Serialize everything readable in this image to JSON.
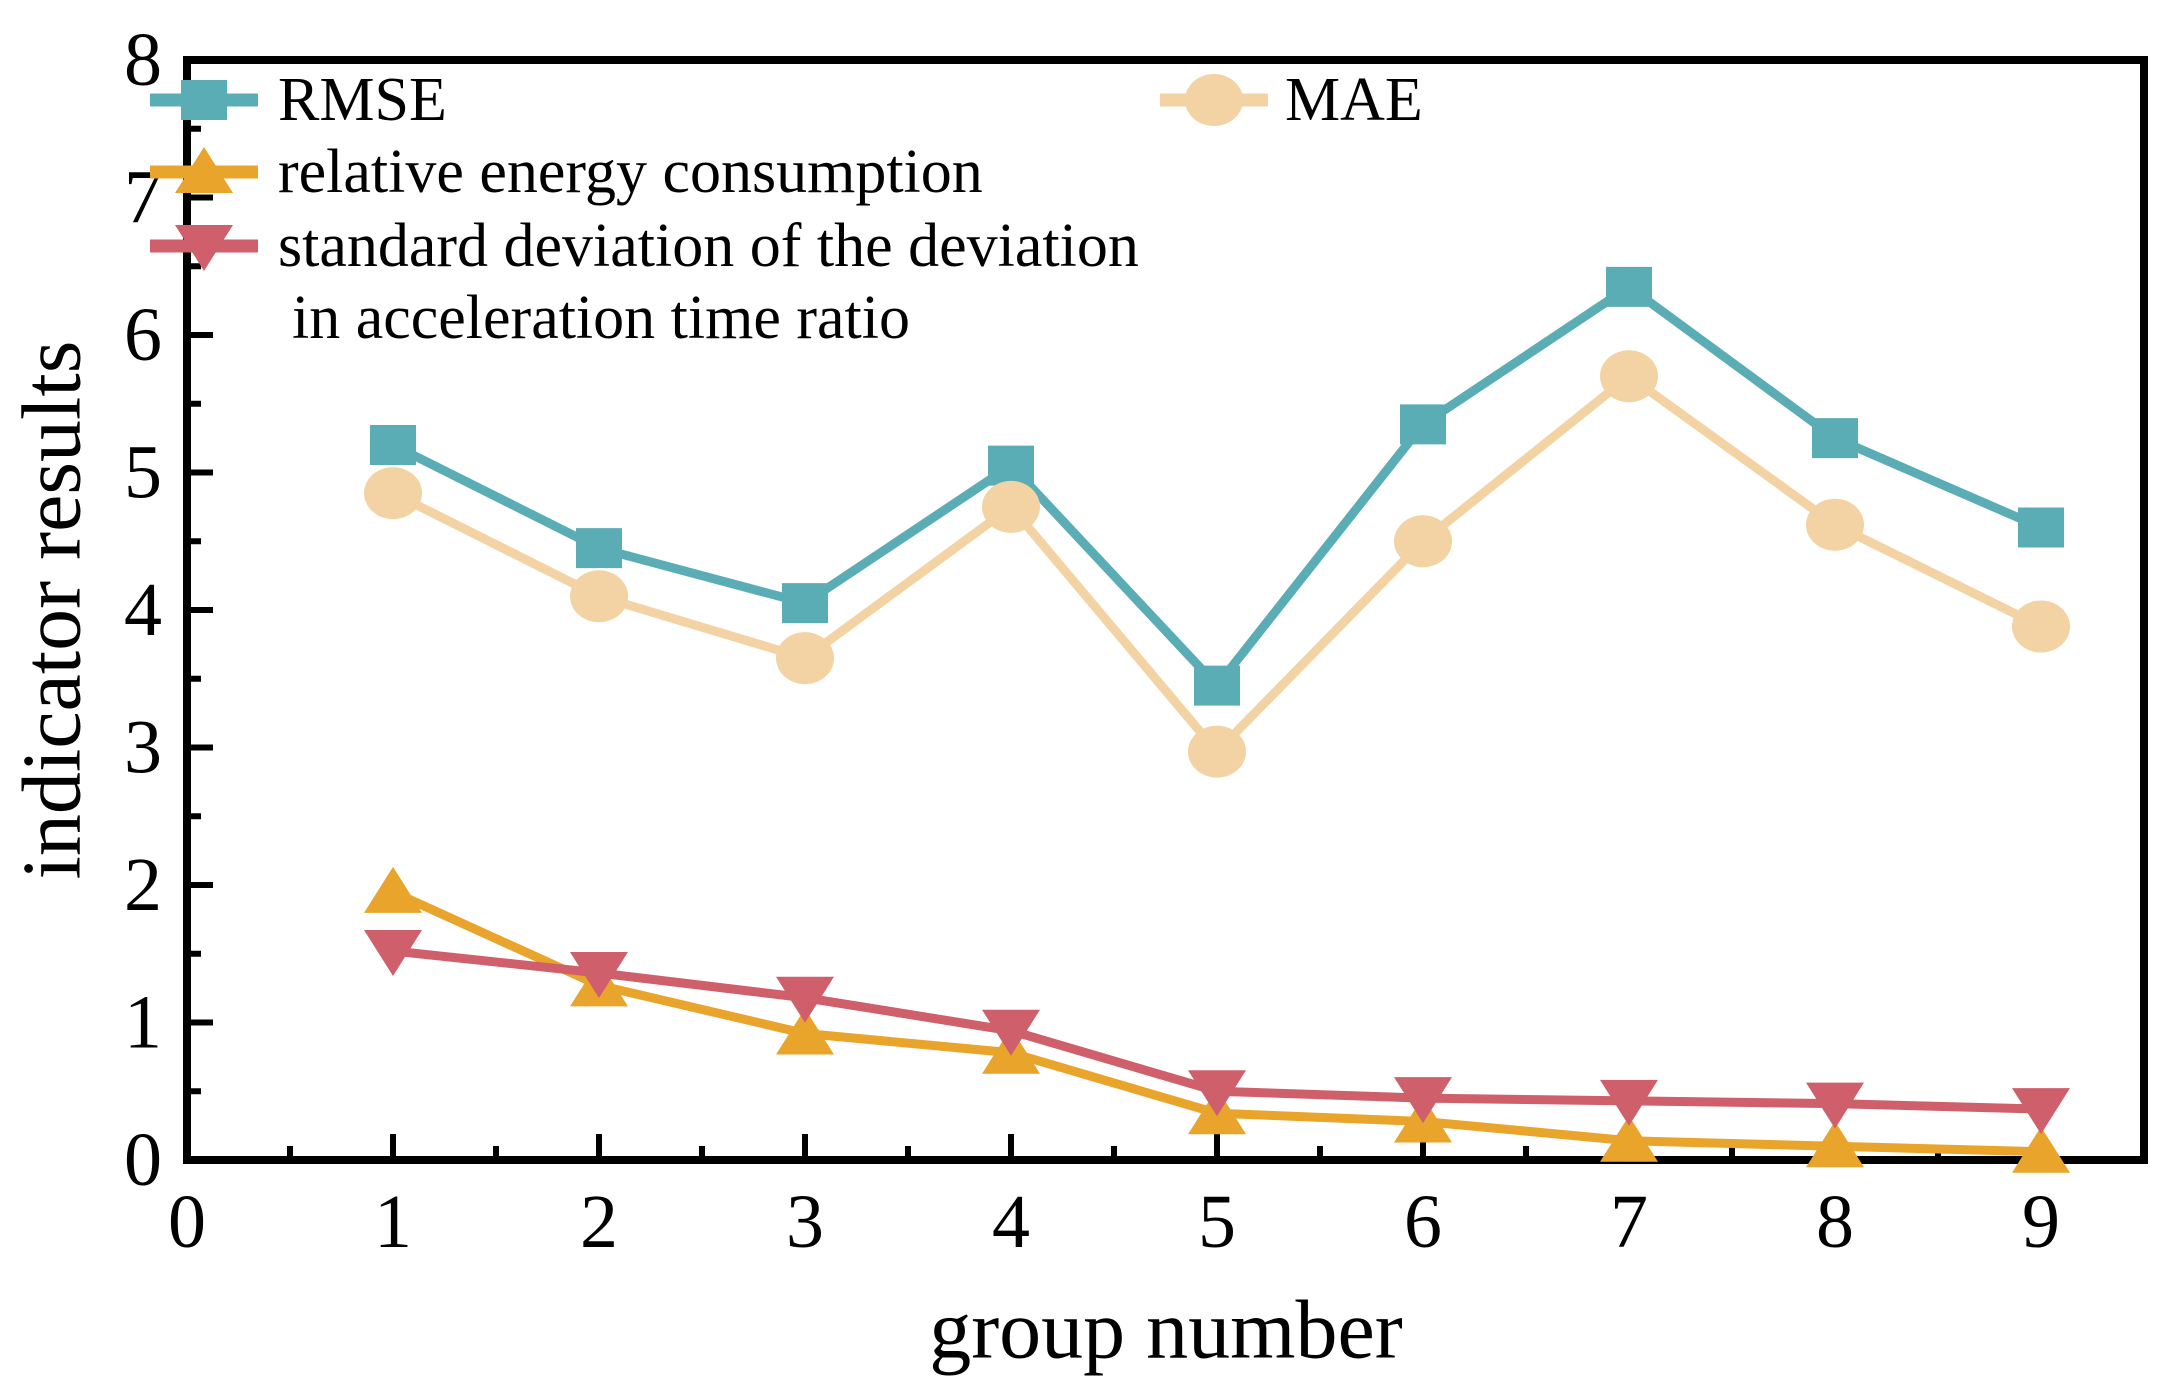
{
  "figure": {
    "background": "#ffffff",
    "axis_color": "#000000"
  },
  "chart_data": {
    "type": "line",
    "title": "",
    "xlabel": "group number",
    "ylabel": "indicator results",
    "x": [
      1,
      2,
      3,
      4,
      5,
      6,
      7,
      8,
      9
    ],
    "xlim": [
      0,
      9.5
    ],
    "ylim": [
      0,
      8
    ],
    "x_ticks": [
      0,
      1,
      2,
      3,
      4,
      5,
      6,
      7,
      8,
      9
    ],
    "y_ticks": [
      0,
      1,
      2,
      3,
      4,
      5,
      6,
      7,
      8
    ],
    "minor_tick_step": 0.5,
    "grid": false,
    "legend_position": "upper-left, frameless, RMSE and MAE on first row (two columns)",
    "series": [
      {
        "name": "RMSE",
        "marker": "square",
        "color": "#5AADB4",
        "values": [
          5.2,
          4.45,
          4.05,
          5.05,
          3.45,
          5.35,
          6.35,
          5.25,
          4.6
        ]
      },
      {
        "name": "MAE",
        "marker": "circle",
        "color": "#F3D2A4",
        "values": [
          4.85,
          4.1,
          3.65,
          4.75,
          2.97,
          4.5,
          5.7,
          4.62,
          3.88
        ]
      },
      {
        "name": "relative energy consumption",
        "marker": "triangle-up",
        "color": "#E8A42B",
        "values": [
          1.95,
          1.27,
          0.92,
          0.78,
          0.34,
          0.28,
          0.14,
          0.1,
          0.06
        ]
      },
      {
        "name": "standard deviation of the deviation in acceleration time ratio",
        "name_lines": [
          "standard deviation of the deviation",
          "in acceleration time ratio"
        ],
        "marker": "triangle-down",
        "color": "#CE5F6B",
        "values": [
          1.52,
          1.36,
          1.18,
          0.94,
          0.5,
          0.45,
          0.43,
          0.41,
          0.37
        ]
      }
    ]
  }
}
